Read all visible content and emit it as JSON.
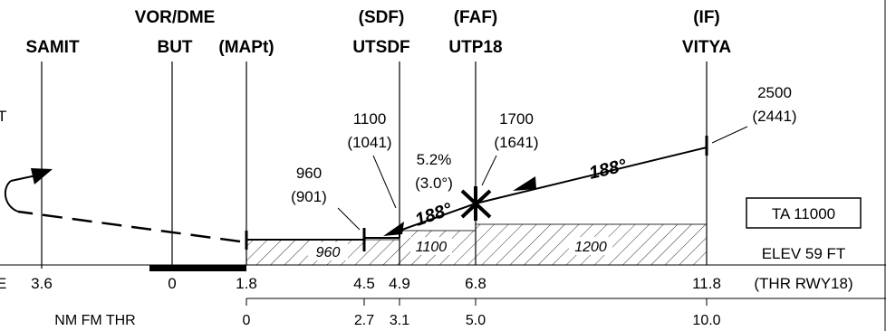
{
  "fixes": {
    "samit": {
      "name": "SAMIT"
    },
    "but": {
      "type": "VOR/DME",
      "name": "BUT"
    },
    "mapt": {
      "role": "(MAPt)"
    },
    "sdf": {
      "role": "(SDF)",
      "name": "UTSDF"
    },
    "faf": {
      "role": "(FAF)",
      "name": "UTP18"
    },
    "if": {
      "role": "(IF)",
      "name": "VITYA"
    }
  },
  "altitudes": {
    "if_alt": "2500",
    "if_hat": "(2441)",
    "faf_alt": "1700",
    "faf_hat": "(1641)",
    "sdf_alt": "1100",
    "sdf_hat": "(1041)",
    "step_alt": "960",
    "step_hat": "(901)"
  },
  "glidepath": {
    "gradient": "5.2%",
    "angle": "(3.0°)"
  },
  "course": {
    "inbound": "188°",
    "final": "188°"
  },
  "minimum_altitudes": {
    "seg1": "960",
    "seg2": "1100",
    "seg3": "1200"
  },
  "transition_altitude": "TA 11000",
  "elevation": {
    "elev": "ELEV 59 FT",
    "ref": "(THR RWY18)"
  },
  "dme_scale": [
    "3.6",
    "0",
    "1.8",
    "4.5",
    "4.9",
    "6.8",
    "11.8"
  ],
  "thr_scale": {
    "label": "NM FM THR",
    "values": [
      "0",
      "2.7",
      "3.1",
      "5.0",
      "10.0"
    ]
  },
  "clipped_left": {
    "top": "T",
    "mid": "E"
  },
  "colors": {
    "ink": "#000000",
    "background": "#ffffff"
  }
}
